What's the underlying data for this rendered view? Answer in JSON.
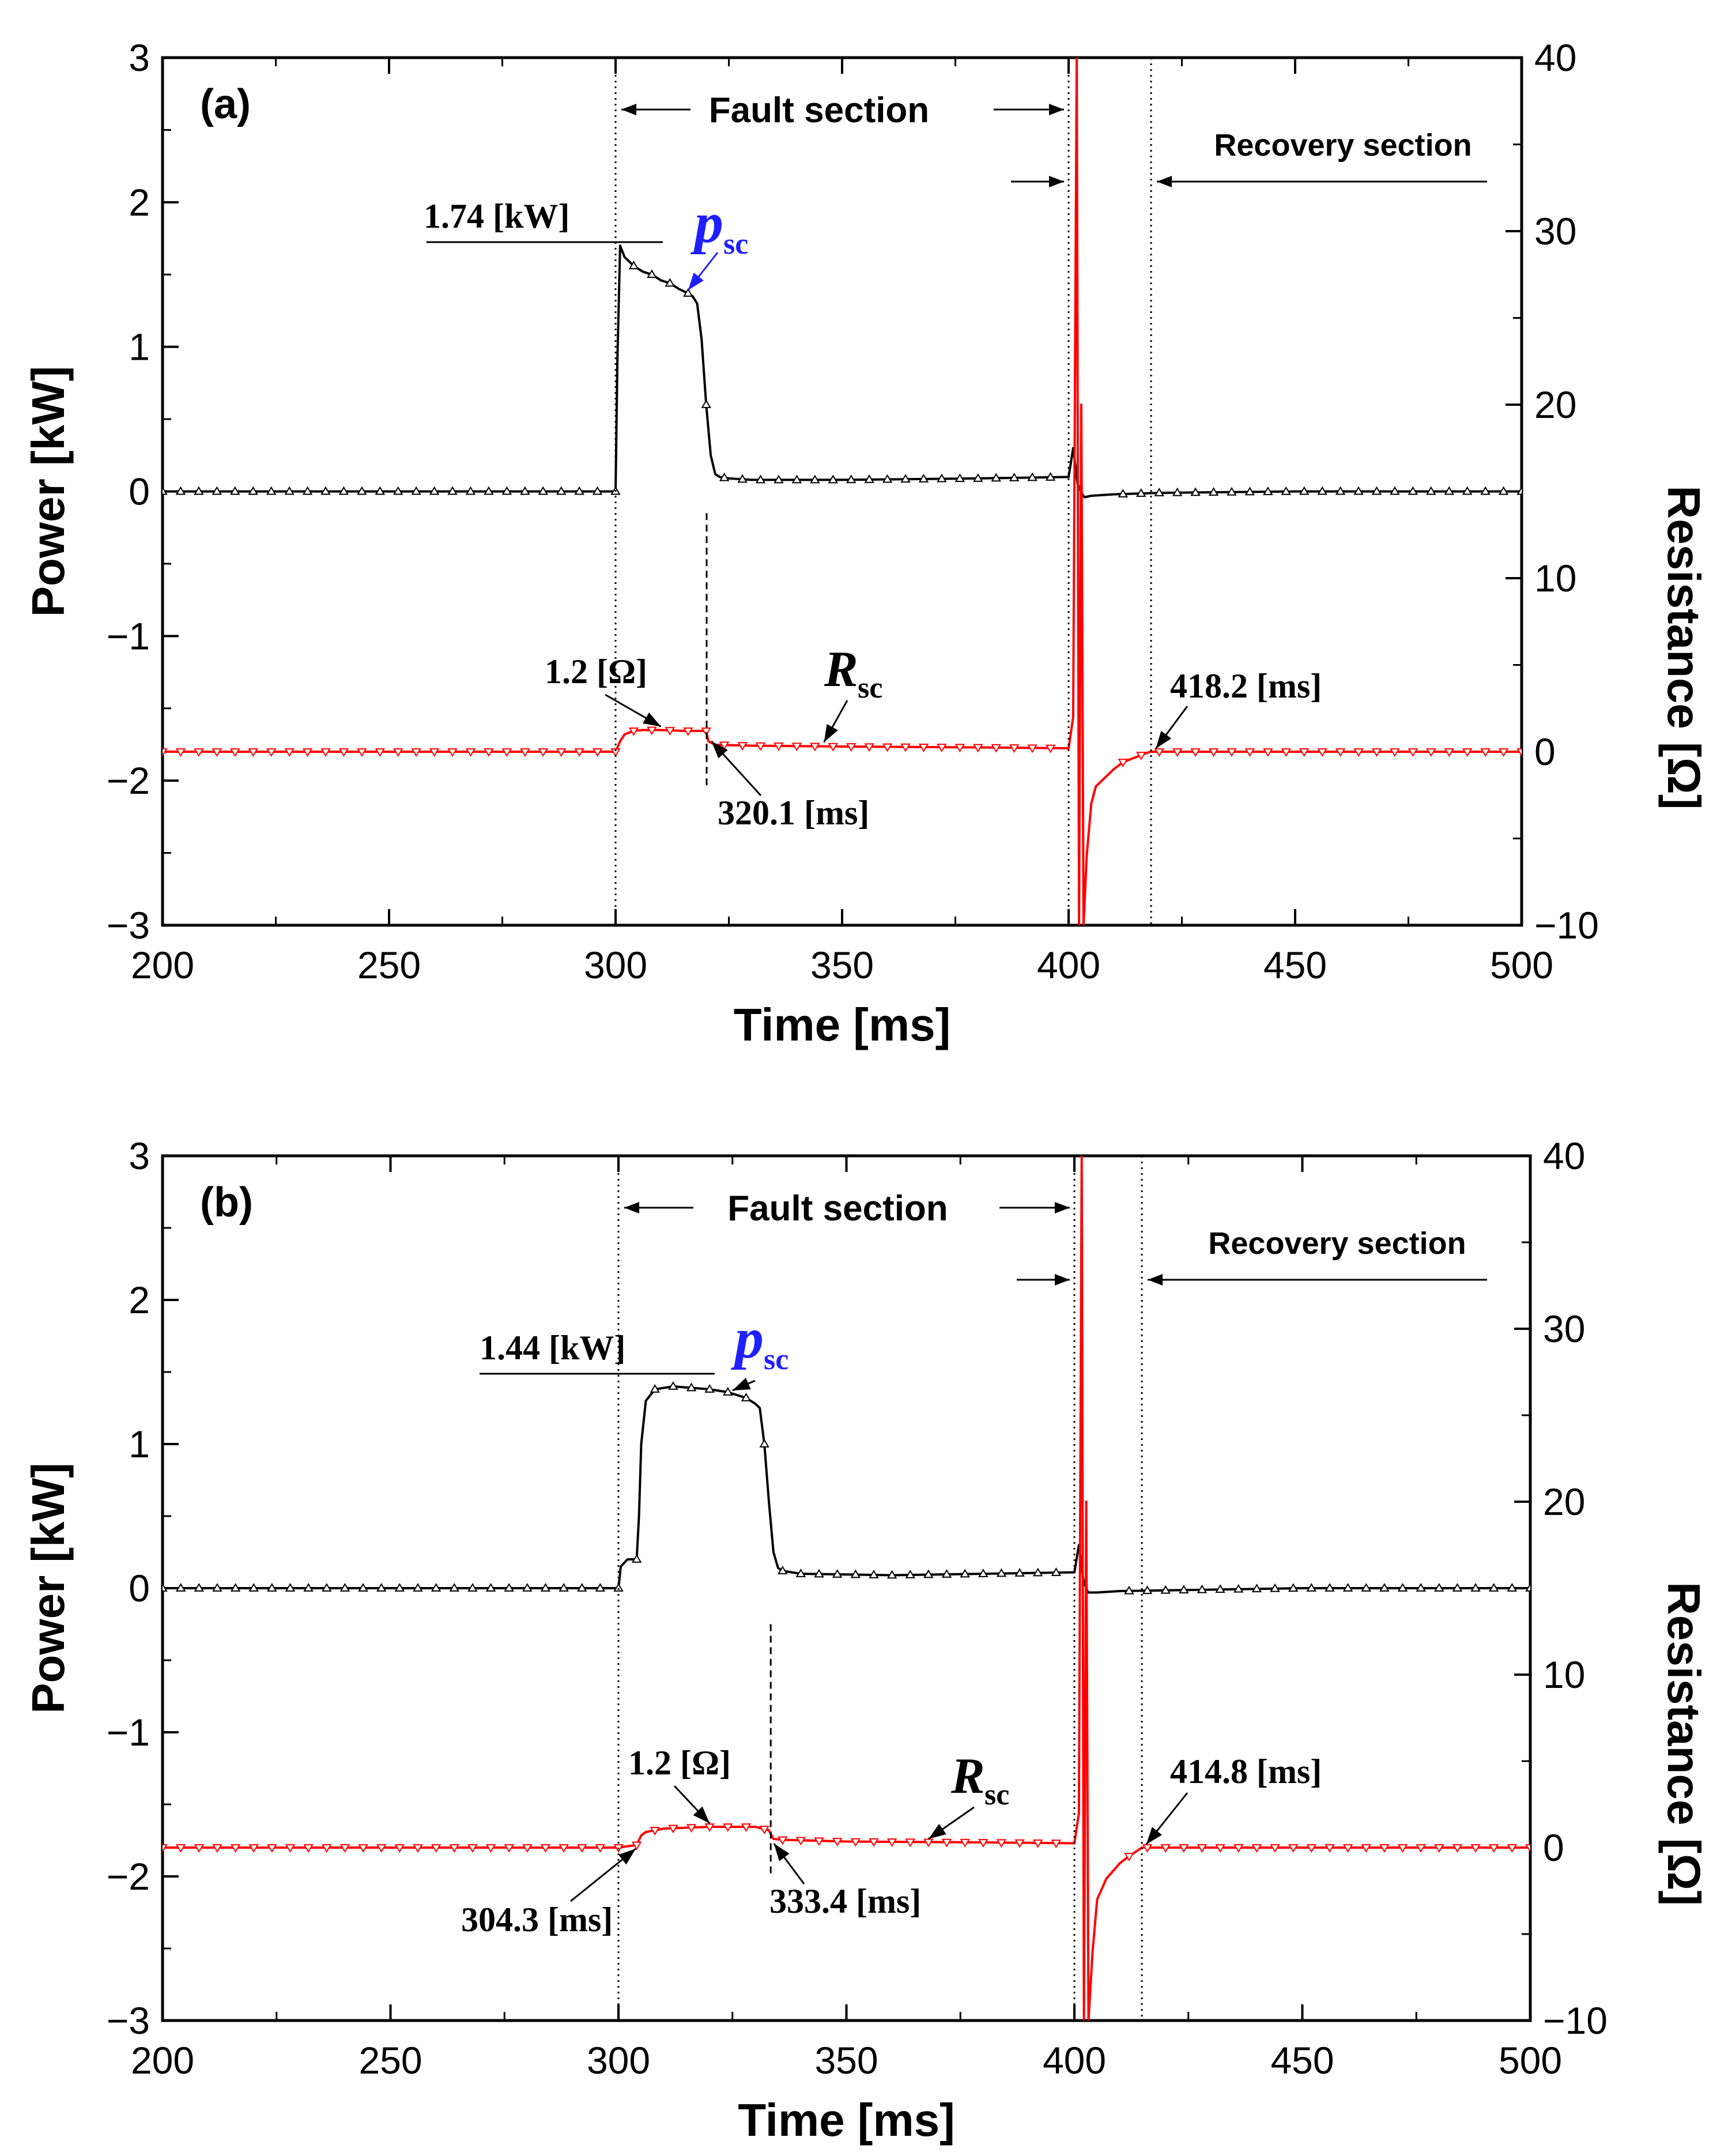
{
  "chart_data": [
    {
      "type": "line",
      "panel_label": "(a)",
      "xlabel": "Time [ms]",
      "ylabel_left": "Power [kW]",
      "ylabel_right": "Resistance [Ω]",
      "xlim": [
        200,
        500
      ],
      "ylim_left": [
        -3,
        3
      ],
      "ylim_right": [
        -10,
        40
      ],
      "x_ticks": [
        200,
        250,
        300,
        350,
        400,
        450,
        500
      ],
      "y_left_ticks": [
        -3,
        -2,
        -1,
        0,
        1,
        2,
        3
      ],
      "y_right_ticks": [
        -10,
        0,
        10,
        20,
        30,
        40
      ],
      "series": [
        {
          "name": "p_sc",
          "axis": "left",
          "color": "#000000",
          "marker": "triangle-up",
          "x": [
            200,
            300,
            300.4,
            301,
            302,
            304,
            306,
            308,
            310,
            312,
            314,
            316,
            317,
            318,
            319,
            320,
            321,
            322,
            323,
            325,
            330,
            350,
            380,
            400,
            401,
            402,
            403,
            403.5,
            405,
            410,
            420,
            450,
            500
          ],
          "y": [
            0,
            0,
            0.9,
            1.7,
            1.62,
            1.56,
            1.52,
            1.5,
            1.46,
            1.44,
            1.4,
            1.37,
            1.35,
            1.3,
            1.05,
            0.6,
            0.25,
            0.12,
            0.1,
            0.09,
            0.08,
            0.08,
            0.09,
            0.1,
            0.3,
            0.05,
            -0.02,
            -0.04,
            -0.03,
            -0.02,
            -0.01,
            0,
            0
          ]
        },
        {
          "name": "R_sc",
          "axis": "right",
          "color": "#ff0000",
          "marker": "triangle-down",
          "x": [
            200,
            300,
            301,
            302,
            304,
            306,
            310,
            315,
            320,
            320.5,
            322,
            330,
            350,
            380,
            400,
            401,
            401.8,
            402.3,
            402.8,
            403.3,
            404,
            405,
            406,
            408,
            410,
            412,
            415,
            418,
            425,
            450,
            500
          ],
          "y": [
            0,
            0,
            0.6,
            1.0,
            1.2,
            1.25,
            1.25,
            1.2,
            1.2,
            0.6,
            0.4,
            0.35,
            0.3,
            0.25,
            0.2,
            2,
            40,
            -10,
            20,
            -10,
            -6,
            -3,
            -2,
            -1.5,
            -1,
            -0.6,
            -0.3,
            0,
            0,
            0,
            0
          ]
        }
      ],
      "annotations": {
        "fault_section": "Fault section",
        "recovery_section": "Recovery section",
        "peak_power": "1.74 [kW]",
        "psc_symbol": "p",
        "psc_sub": "sc",
        "r_value": "1.2 [Ω]",
        "rsc_symbol": "R",
        "rsc_sub": "sc",
        "t_quench": "320.1 [ms]",
        "t_recovery": "418.2 [ms]"
      }
    },
    {
      "type": "line",
      "panel_label": "(b)",
      "xlabel": "Time [ms]",
      "ylabel_left": "Power [kW]",
      "ylabel_right": "Resistance [Ω]",
      "xlim": [
        200,
        500
      ],
      "ylim_left": [
        -3,
        3
      ],
      "ylim_right": [
        -10,
        40
      ],
      "x_ticks": [
        200,
        250,
        300,
        350,
        400,
        450,
        500
      ],
      "y_left_ticks": [
        -3,
        -2,
        -1,
        0,
        1,
        2,
        3
      ],
      "y_right_ticks": [
        -10,
        0,
        10,
        20,
        30,
        40
      ],
      "series": [
        {
          "name": "p_sc",
          "axis": "left",
          "color": "#000000",
          "marker": "triangle-up",
          "x": [
            200,
            300,
            300.5,
            302,
            304,
            304.5,
            305,
            306,
            308,
            312,
            316,
            320,
            324,
            328,
            330,
            331,
            332,
            333,
            334,
            335,
            336,
            340,
            360,
            400,
            401,
            402,
            403,
            405,
            410,
            450,
            500
          ],
          "y": [
            0,
            0,
            0.15,
            0.2,
            0.2,
            0.5,
            1.0,
            1.3,
            1.38,
            1.4,
            1.39,
            1.38,
            1.36,
            1.32,
            1.28,
            1.25,
            1.0,
            0.6,
            0.25,
            0.14,
            0.12,
            0.1,
            0.09,
            0.11,
            0.3,
            0.05,
            -0.03,
            -0.03,
            -0.02,
            0,
            0
          ]
        },
        {
          "name": "R_sc",
          "axis": "right",
          "color": "#ff0000",
          "marker": "triangle-down",
          "x": [
            200,
            300,
            304,
            305,
            306,
            310,
            320,
            330,
            333,
            334,
            336,
            350,
            380,
            400,
            401,
            401.6,
            402.1,
            402.6,
            403.1,
            404,
            405,
            407,
            410,
            412,
            414.8,
            420,
            450,
            500
          ],
          "y": [
            0,
            0,
            0.15,
            0.7,
            0.9,
            1.1,
            1.2,
            1.2,
            1.0,
            0.5,
            0.45,
            0.35,
            0.3,
            0.25,
            2,
            40,
            -10,
            20,
            -10,
            -6,
            -3,
            -1.8,
            -0.9,
            -0.5,
            0,
            0,
            0,
            0
          ]
        }
      ],
      "annotations": {
        "fault_section": "Fault section",
        "recovery_section": "Recovery section",
        "peak_power": "1.44 [kW]",
        "psc_symbol": "p",
        "psc_sub": "sc",
        "r_value": "1.2 [Ω]",
        "rsc_symbol": "R",
        "rsc_sub": "sc",
        "t_start": "304.3 [ms]",
        "t_quench": "333.4 [ms]",
        "t_recovery": "414.8 [ms]"
      }
    }
  ]
}
